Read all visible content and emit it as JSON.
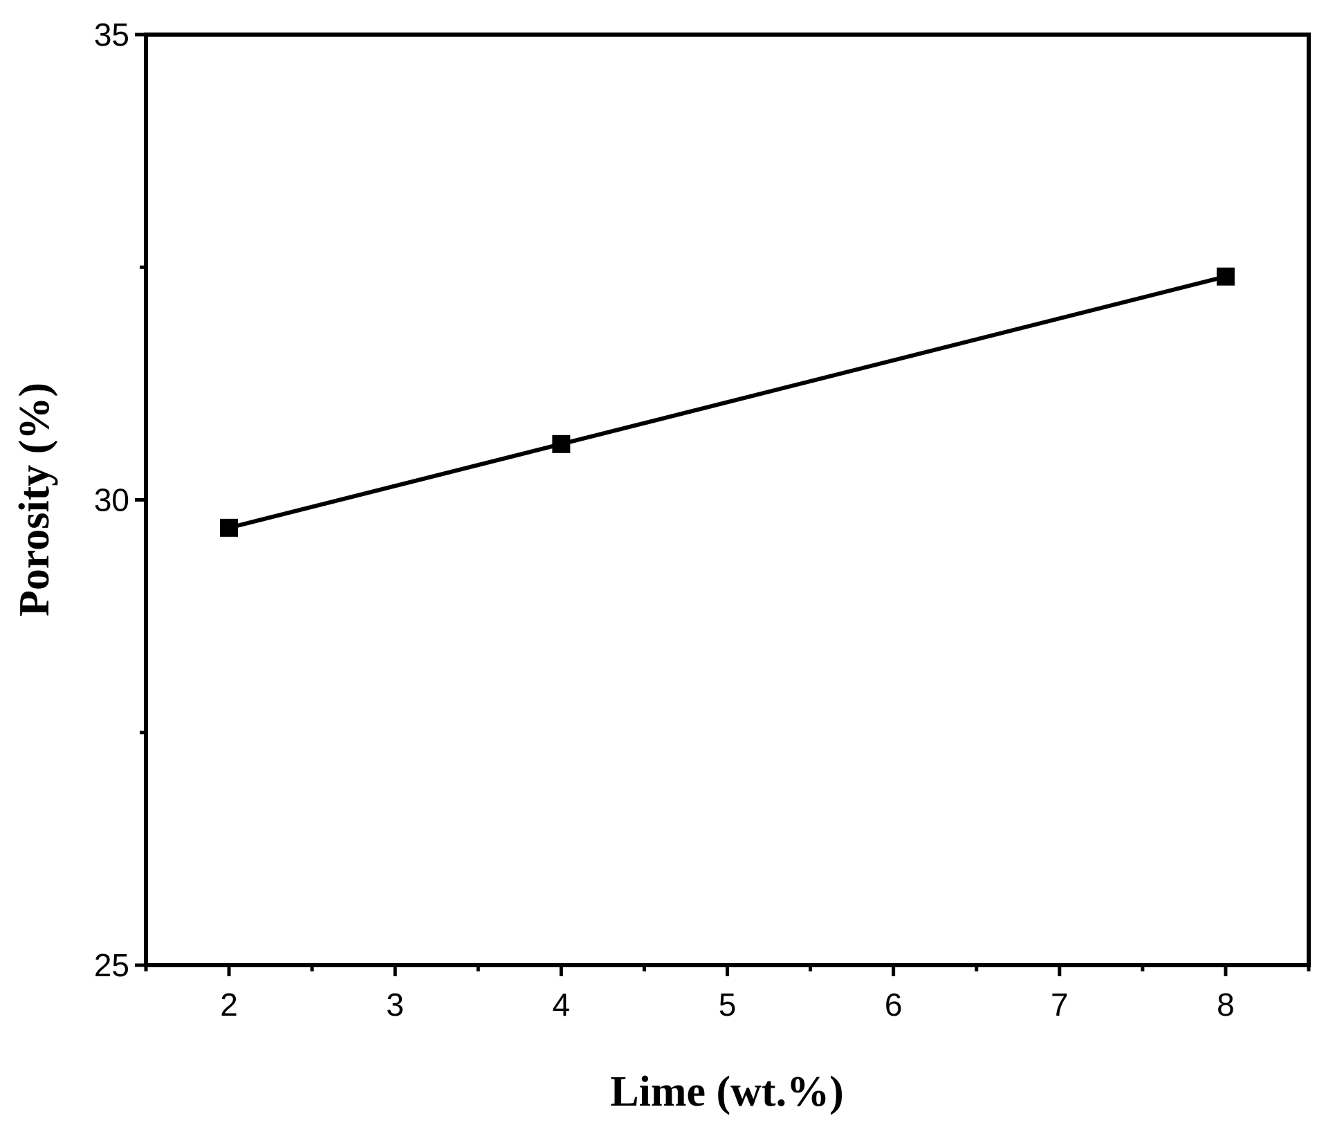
{
  "chart_data": {
    "type": "line",
    "title": "",
    "xlabel": "Lime (wt.%)",
    "ylabel": "Porosity (%)",
    "xlim": [
      1.5,
      8.5
    ],
    "ylim": [
      25,
      35
    ],
    "x_ticks": [
      2,
      3,
      4,
      5,
      6,
      7,
      8
    ],
    "x_tick_labels": [
      "2",
      "3",
      "4",
      "5",
      "6",
      "7",
      "8"
    ],
    "y_ticks": [
      25,
      30,
      35
    ],
    "y_tick_labels": [
      "25",
      "30",
      "35"
    ],
    "y_minor_ticks": [
      27.5,
      32.5
    ],
    "grid": false,
    "legend": "none",
    "series": [
      {
        "marker": "square",
        "color": "#000000",
        "x": [
          2,
          4,
          8
        ],
        "y": [
          29.7,
          30.6,
          32.4
        ]
      }
    ]
  }
}
